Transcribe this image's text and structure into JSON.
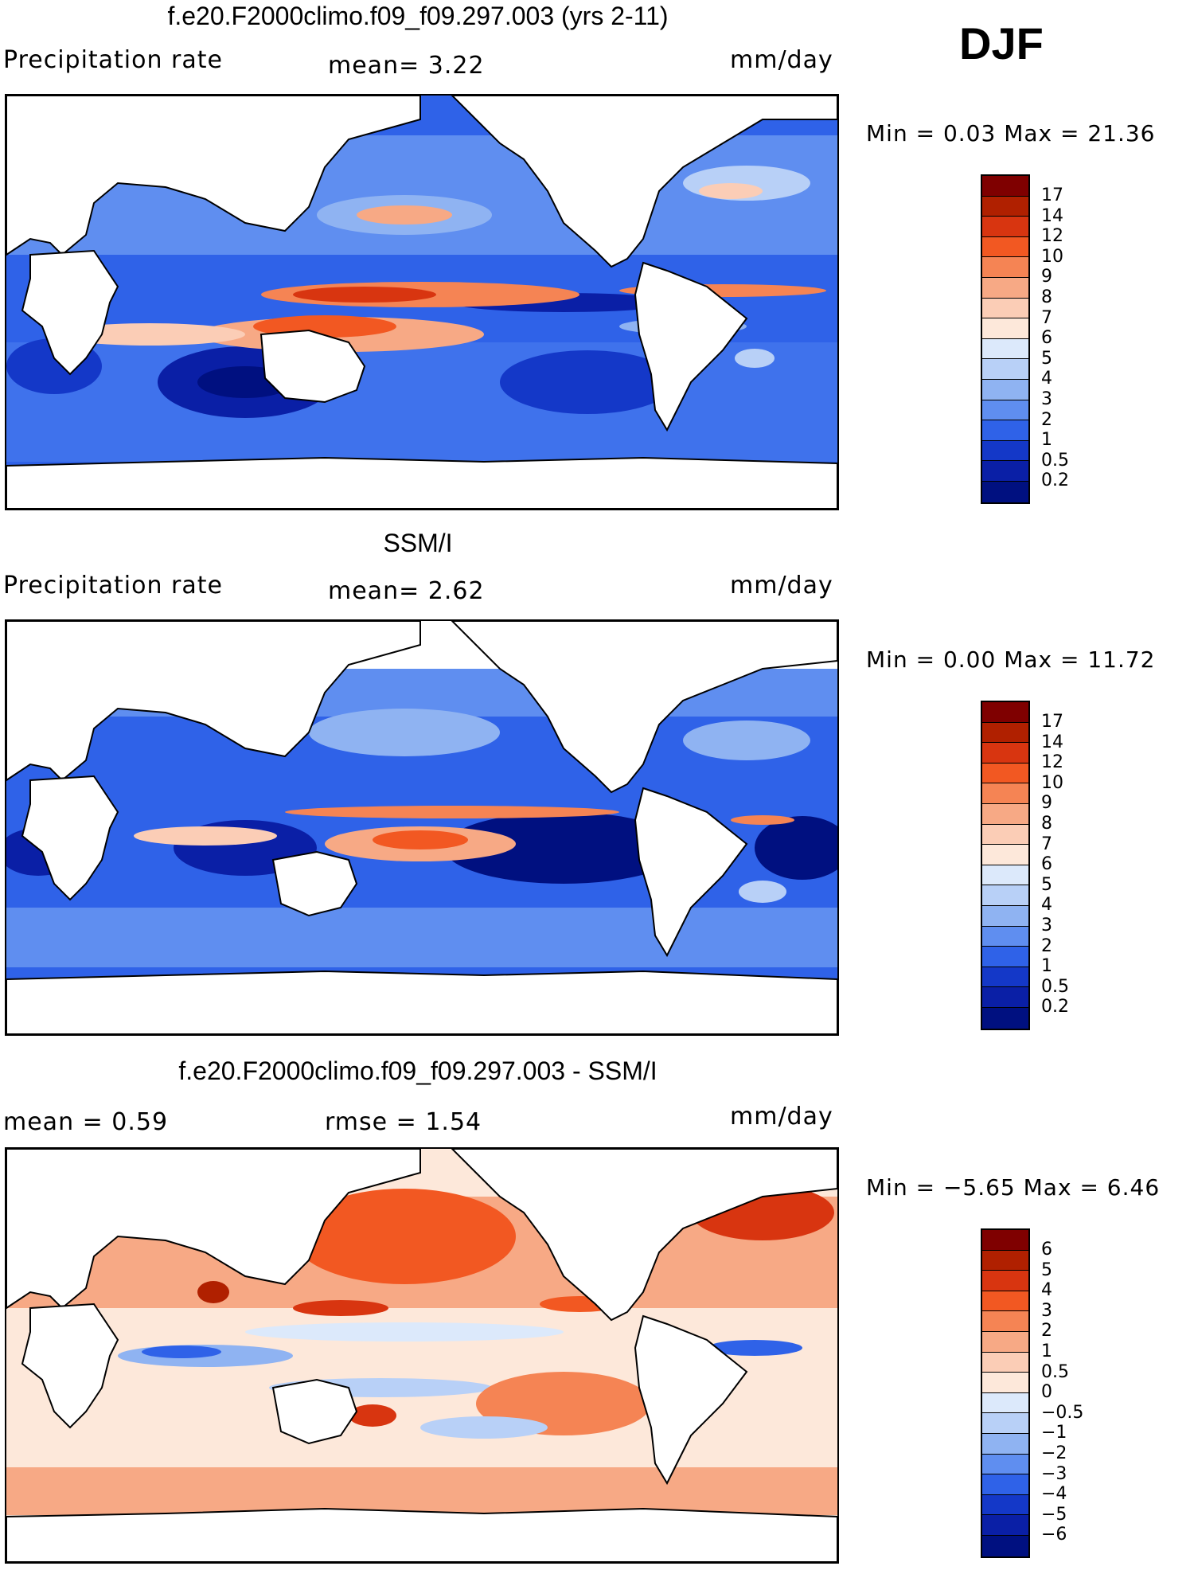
{
  "season": "DJF",
  "panels": [
    {
      "title": "f.e20.F2000climo.f09_f09.297.003 (yrs 2-11)",
      "left_label": "Precipitation rate",
      "mid_label": "mean=   3.22",
      "units": "mm/day",
      "minmax": "Min =   0.03 Max =   21.36"
    },
    {
      "title": "SSM/I",
      "left_label": "Precipitation rate",
      "mid_label": "mean=   2.62",
      "units": "mm/day",
      "minmax": "Min =   0.00 Max =   11.72"
    },
    {
      "title": "f.e20.F2000climo.f09_f09.297.003 - SSM/I",
      "left_label": "mean =   0.59",
      "mid_label": "rmse =   1.54",
      "units": "mm/day",
      "minmax": "Min =  −5.65 Max =    6.46"
    }
  ],
  "colorbars": {
    "precip": {
      "labels": [
        "17",
        "14",
        "12",
        "10",
        "9",
        "8",
        "7",
        "6",
        "5",
        "4",
        "3",
        "2",
        "1",
        "0.5",
        "0.2"
      ],
      "colors": [
        "#7f0000",
        "#b02000",
        "#d83510",
        "#f25822",
        "#f58454",
        "#f7a985",
        "#fbcdb6",
        "#fde8da",
        "#dce9fb",
        "#b8d0f7",
        "#8fb3f2",
        "#5f8ef0",
        "#2f62e8",
        "#1438c8",
        "#0a1fa6",
        "#001080"
      ]
    },
    "diff": {
      "labels": [
        "6",
        "5",
        "4",
        "3",
        "2",
        "1",
        "0.5",
        "0",
        "−0.5",
        "−1",
        "−2",
        "−3",
        "−4",
        "−5",
        "−6"
      ],
      "colors": [
        "#7f0000",
        "#b02000",
        "#d83510",
        "#f25822",
        "#f58454",
        "#f7a985",
        "#fbcdb6",
        "#fde8da",
        "#dce9fb",
        "#b8d0f7",
        "#8fb3f2",
        "#5f8ef0",
        "#2f62e8",
        "#1438c8",
        "#0a1fa6",
        "#001080"
      ]
    }
  }
}
